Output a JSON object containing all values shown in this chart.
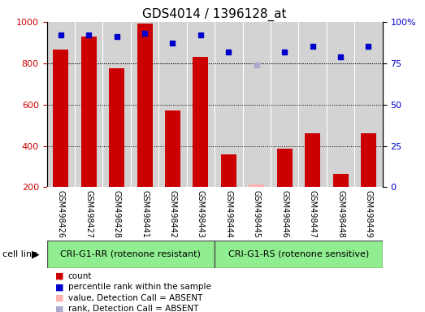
{
  "title": "GDS4014 / 1396128_at",
  "samples": [
    "GSM498426",
    "GSM498427",
    "GSM498428",
    "GSM498441",
    "GSM498442",
    "GSM498443",
    "GSM498444",
    "GSM498445",
    "GSM498446",
    "GSM498447",
    "GSM498448",
    "GSM498449"
  ],
  "counts": [
    865,
    930,
    775,
    990,
    570,
    830,
    360,
    215,
    385,
    460,
    265,
    460
  ],
  "ranks": [
    92,
    92,
    91,
    93,
    87,
    92,
    82,
    null,
    82,
    85,
    79,
    85
  ],
  "absent_mask": [
    false,
    false,
    false,
    false,
    false,
    false,
    false,
    true,
    false,
    false,
    false,
    false
  ],
  "absent_count": [
    null,
    null,
    null,
    null,
    null,
    null,
    null,
    215,
    null,
    null,
    null,
    null
  ],
  "absent_rank": [
    null,
    null,
    null,
    null,
    null,
    null,
    null,
    74,
    null,
    null,
    null,
    null
  ],
  "group1_label": "CRI-G1-RR (rotenone resistant)",
  "group2_label": "CRI-G1-RS (rotenone sensitive)",
  "group1_count": 6,
  "group2_count": 6,
  "group1_color": "#90ee90",
  "group2_color": "#90ee90",
  "bar_color": "#cc0000",
  "absent_bar_color": "#ffb0b0",
  "rank_color": "#0000cc",
  "absent_rank_color": "#aaaacc",
  "ylim_left": [
    200,
    1000
  ],
  "ylim_right": [
    0,
    100
  ],
  "yticks_left": [
    200,
    400,
    600,
    800,
    1000
  ],
  "yticks_right": [
    0,
    25,
    50,
    75,
    100
  ],
  "grid_values": [
    400,
    600,
    800
  ],
  "cell_line_label": "cell line",
  "legend_items": [
    {
      "label": "count",
      "color": "#cc0000"
    },
    {
      "label": "percentile rank within the sample",
      "color": "#0000cc"
    },
    {
      "label": "value, Detection Call = ABSENT",
      "color": "#ffb0b0"
    },
    {
      "label": "rank, Detection Call = ABSENT",
      "color": "#aaaacc"
    }
  ],
  "bar_width": 0.55,
  "background_color": "#ffffff",
  "plot_bg_color": "#d3d3d3",
  "col_sep_color": "#ffffff"
}
